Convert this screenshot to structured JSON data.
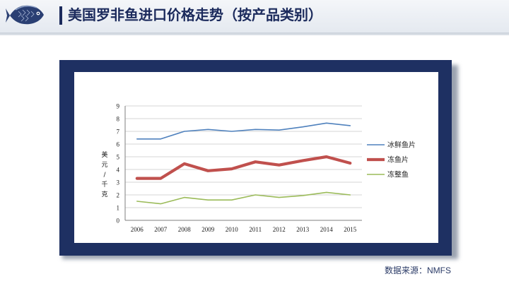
{
  "page": {
    "title": "美国罗非鱼进口价格走势（按产品类别）",
    "source_label": "数据来源：",
    "source_value": "NMFS",
    "accent_color": "#1b2a5c",
    "frame_color": "#1e3062",
    "logo_icon": "fish-logo-icon"
  },
  "chart_data": {
    "type": "line",
    "title": "",
    "xlabel": "",
    "ylabel": "美元/千克",
    "categories": [
      "2006",
      "2007",
      "2008",
      "2009",
      "2010",
      "2011",
      "2012",
      "2013",
      "2014",
      "2015"
    ],
    "ylim": [
      0,
      9
    ],
    "yticks": [
      0,
      1,
      2,
      3,
      4,
      5,
      6,
      7,
      8,
      9
    ],
    "grid": true,
    "legend_position": "right",
    "series": [
      {
        "name": "冰鲜鱼片",
        "color": "#4f81bd",
        "values": [
          6.4,
          6.4,
          7.0,
          7.15,
          7.0,
          7.15,
          7.1,
          7.35,
          7.65,
          7.45
        ]
      },
      {
        "name": "冻鱼片",
        "color": "#c0504d",
        "values": [
          3.3,
          3.3,
          4.45,
          3.9,
          4.05,
          4.6,
          4.35,
          4.7,
          5.0,
          4.5
        ]
      },
      {
        "name": "冻整鱼",
        "color": "#9bbb59",
        "values": [
          1.5,
          1.3,
          1.8,
          1.6,
          1.6,
          2.0,
          1.8,
          1.95,
          2.2,
          2.0
        ]
      }
    ]
  }
}
